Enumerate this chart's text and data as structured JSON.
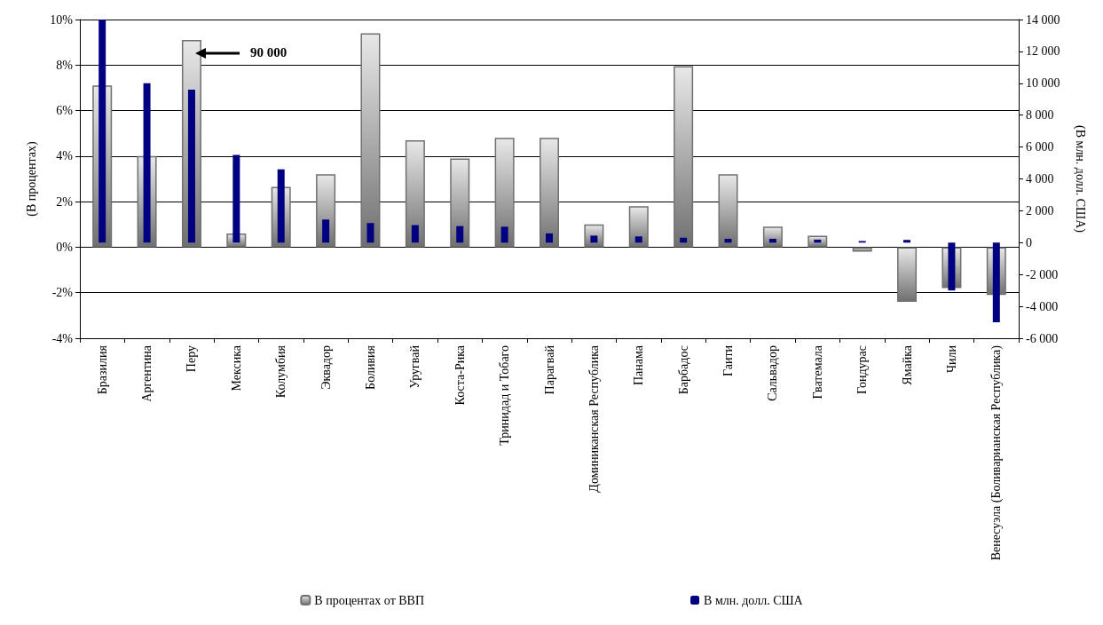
{
  "chart_data": {
    "type": "bar",
    "categories": [
      "Бразилия",
      "Аргентина",
      "Перу",
      "Мексика",
      "Колумбия",
      "Эквадор",
      "Боливия",
      "Уругвай",
      "Коста-Рика",
      "Тринидад и Тобаго",
      "Парагвай",
      "Доминиканская Республика",
      "Панама",
      "Барбадос",
      "Гаити",
      "Сальвадор",
      "Гватемала",
      "Гондурас",
      "Ямайка",
      "Чили",
      "Венесуэла (Боливарианская Республика)"
    ],
    "series": [
      {
        "name": "В процентах от ВВП",
        "color": "#707070",
        "values": [
          7.1,
          4.0,
          9.1,
          0.6,
          2.65,
          3.2,
          9.4,
          4.7,
          3.9,
          4.8,
          4.8,
          1.0,
          1.8,
          7.95,
          3.2,
          0.9,
          0.5,
          -0.2,
          -2.4,
          -1.8,
          -2.1
        ]
      },
      {
        "name": "В млн. долл. США",
        "color": "#000080",
        "axis": "y2",
        "values": [
          14000,
          10000,
          9600,
          5500,
          4600,
          1450,
          1230,
          1100,
          1040,
          1000,
          580,
          440,
          390,
          310,
          240,
          240,
          190,
          100,
          170,
          -3000,
          -5000
        ]
      }
    ],
    "ylabel": "(В процентах)",
    "y2label": "(В млн. долл. США)",
    "ylim": [
      -4,
      10
    ],
    "yticks": [
      {
        "value": -4,
        "label": "-4%"
      },
      {
        "value": -2,
        "label": "-2%"
      },
      {
        "value": 0,
        "label": "0%"
      },
      {
        "value": 2,
        "label": "2%"
      },
      {
        "value": 4,
        "label": "4%"
      },
      {
        "value": 6,
        "label": "6%"
      },
      {
        "value": 8,
        "label": "8%"
      },
      {
        "value": 10,
        "label": "10%"
      }
    ],
    "y2lim": [
      -6000,
      14000
    ],
    "y2ticks": [
      {
        "value": -6000,
        "label": "-6 000"
      },
      {
        "value": -4000,
        "label": "-4 000"
      },
      {
        "value": -2000,
        "label": "-2 000"
      },
      0,
      {
        "value": 2000,
        "label": "2 000"
      },
      {
        "value": 4000,
        "label": "4 000"
      },
      {
        "value": 6000,
        "label": "6 000"
      },
      {
        "value": 8000,
        "label": "8 000"
      },
      {
        "value": 10000,
        "label": "10 000"
      },
      {
        "value": 12000,
        "label": "12 000"
      },
      {
        "value": 14000,
        "label": "14 000"
      }
    ],
    "annotations": [
      "90 000"
    ],
    "grid": "y",
    "legend": "bottom"
  }
}
